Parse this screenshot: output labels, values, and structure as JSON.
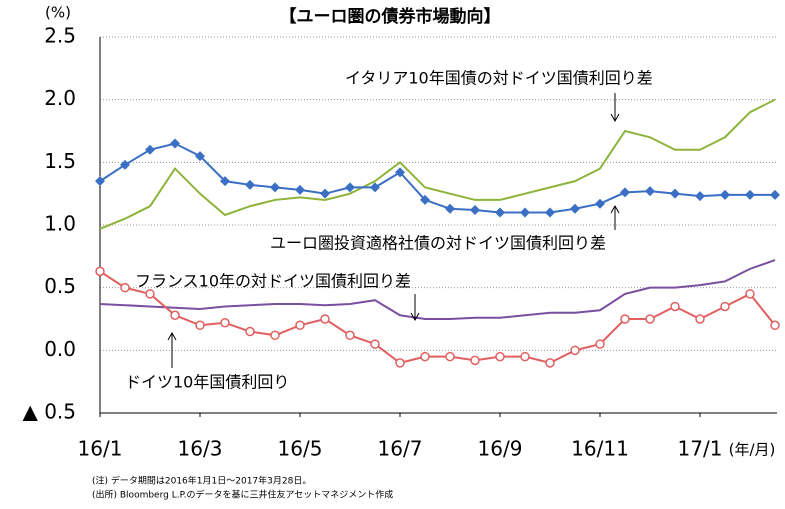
{
  "chart_data": {
    "type": "line",
    "title": "【ユーロ圏の債券市場動向】",
    "y_unit": "(%)",
    "x_unit": "(年/月)",
    "notes": [
      "(注) データ期間は2016年1月1日～2017年3月28日。",
      "(出所) Bloomberg L.P.のデータを基に三井住友アセットマネジメント作成"
    ],
    "annotations": [
      "イタリア10年国債の対ドイツ国債利回り差",
      "ユーロ圏投資適格社債の対ドイツ国債利回り差",
      "フランス10年の対ドイツ国債利回り差",
      "ドイツ10年国債利回り"
    ],
    "x": [
      0,
      0.5,
      1,
      1.5,
      2,
      2.5,
      3,
      3.5,
      4,
      4.5,
      5,
      5.5,
      6,
      6.5,
      7,
      7.5,
      8,
      8.5,
      9,
      9.5,
      10,
      10.5,
      11,
      11.5,
      12,
      12.5,
      13,
      13.5
    ],
    "xlim": [
      0,
      13.54
    ],
    "xticks": [
      {
        "value": 0,
        "label": "16/1"
      },
      {
        "value": 2,
        "label": "16/3"
      },
      {
        "value": 4,
        "label": "16/5"
      },
      {
        "value": 6,
        "label": "16/7"
      },
      {
        "value": 8,
        "label": "16/9"
      },
      {
        "value": 10,
        "label": "16/11"
      },
      {
        "value": 12,
        "label": "17/1"
      }
    ],
    "ylim": [
      -0.5,
      2.5
    ],
    "yticks": [
      {
        "value": -0.5,
        "label": "▲ 0.5"
      },
      {
        "value": 0,
        "label": "0.0"
      },
      0.5,
      {
        "value": 1,
        "label": "1.0"
      },
      1.5,
      {
        "value": 2,
        "label": "2.0"
      },
      2.5
    ],
    "grid": true,
    "series": [
      {
        "name": "イタリア10年国債の対ドイツ国債利回り差",
        "color": "#8db33a",
        "marker": "none",
        "values": [
          0.97,
          1.05,
          1.15,
          1.45,
          1.25,
          1.08,
          1.15,
          1.2,
          1.22,
          1.2,
          1.25,
          1.35,
          1.5,
          1.3,
          1.25,
          1.2,
          1.2,
          1.25,
          1.3,
          1.35,
          1.45,
          1.75,
          1.7,
          1.6,
          1.6,
          1.7,
          1.9,
          2.0
        ]
      },
      {
        "name": "ユーロ圏投資適格社債の対ドイツ国債利回り差",
        "color": "#3a6fc4",
        "marker": "diamond",
        "values": [
          1.35,
          1.48,
          1.6,
          1.65,
          1.55,
          1.35,
          1.32,
          1.3,
          1.28,
          1.25,
          1.3,
          1.3,
          1.42,
          1.2,
          1.13,
          1.12,
          1.1,
          1.1,
          1.1,
          1.13,
          1.17,
          1.26,
          1.27,
          1.25,
          1.23,
          1.24,
          1.24,
          1.24
        ]
      },
      {
        "name": "フランス10年の対ドイツ国債利回り差",
        "color": "#7b4fa0",
        "marker": "none",
        "values": [
          0.37,
          0.36,
          0.35,
          0.34,
          0.33,
          0.35,
          0.36,
          0.37,
          0.37,
          0.36,
          0.37,
          0.4,
          0.28,
          0.25,
          0.25,
          0.26,
          0.26,
          0.28,
          0.3,
          0.3,
          0.32,
          0.45,
          0.5,
          0.5,
          0.52,
          0.55,
          0.65,
          0.72
        ]
      },
      {
        "name": "ドイツ10年国債利回り",
        "color": "#e06060",
        "marker": "circle",
        "values": [
          0.63,
          0.5,
          0.45,
          0.28,
          0.2,
          0.22,
          0.15,
          0.12,
          0.2,
          0.25,
          0.12,
          0.05,
          -0.1,
          -0.05,
          -0.05,
          -0.08,
          -0.05,
          -0.05,
          -0.1,
          0.0,
          0.05,
          0.25,
          0.25,
          0.35,
          0.25,
          0.35,
          0.45,
          0.2
        ]
      }
    ]
  }
}
